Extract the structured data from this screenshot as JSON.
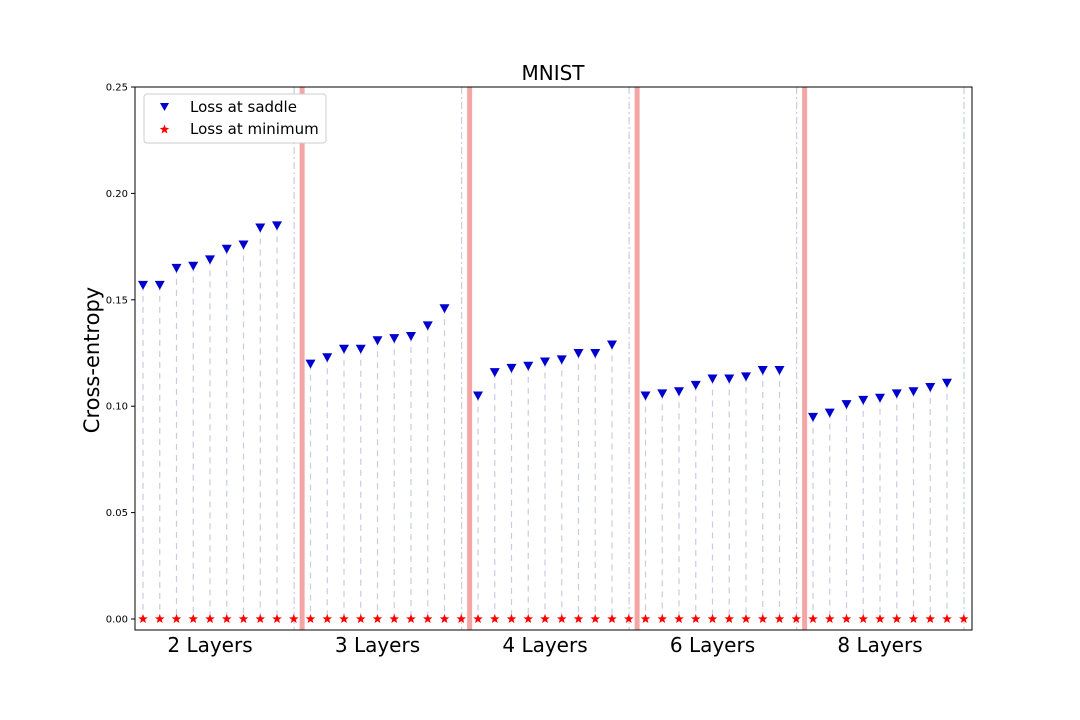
{
  "chart_data": {
    "type": "scatter",
    "title": "MNIST",
    "xlabel": "",
    "ylabel": "Cross-entropy",
    "ylim": [
      0,
      0.25
    ],
    "yticks": [
      "0.00",
      "0.05",
      "0.10",
      "0.15",
      "0.20",
      "0.25"
    ],
    "grid": false,
    "legend_position": "top-left",
    "groups": [
      {
        "label": "2 Layers",
        "saddle": [
          0.157,
          0.157,
          0.165,
          0.166,
          0.169,
          0.174,
          0.176,
          0.184,
          0.185
        ],
        "minimum": [
          0,
          0,
          0,
          0,
          0,
          0,
          0,
          0,
          0,
          0
        ]
      },
      {
        "label": "3 Layers",
        "saddle": [
          0.12,
          0.123,
          0.127,
          0.127,
          0.131,
          0.132,
          0.133,
          0.138,
          0.146
        ],
        "minimum": [
          0,
          0,
          0,
          0,
          0,
          0,
          0,
          0,
          0,
          0
        ]
      },
      {
        "label": "4 Layers",
        "saddle": [
          0.105,
          0.116,
          0.118,
          0.119,
          0.121,
          0.122,
          0.125,
          0.125,
          0.129
        ],
        "minimum": [
          0,
          0,
          0,
          0,
          0,
          0,
          0,
          0,
          0,
          0
        ]
      },
      {
        "label": "6 Layers",
        "saddle": [
          0.105,
          0.106,
          0.107,
          0.11,
          0.113,
          0.113,
          0.114,
          0.117,
          0.117
        ],
        "minimum": [
          0,
          0,
          0,
          0,
          0,
          0,
          0,
          0,
          0,
          0
        ]
      },
      {
        "label": "8 Layers",
        "saddle": [
          0.095,
          0.097,
          0.101,
          0.103,
          0.104,
          0.106,
          0.107,
          0.109,
          0.111
        ],
        "minimum": [
          0,
          0,
          0,
          0,
          0,
          0,
          0,
          0,
          0,
          0
        ]
      }
    ],
    "series": [
      {
        "name": "Loss at saddle",
        "marker": "triangle-down",
        "color": "#0000cc"
      },
      {
        "name": "Loss at minimum",
        "marker": "star",
        "color": "#ff0000"
      }
    ],
    "separator_color": "#f4a6a6",
    "guide_color": "#c8cce0"
  }
}
